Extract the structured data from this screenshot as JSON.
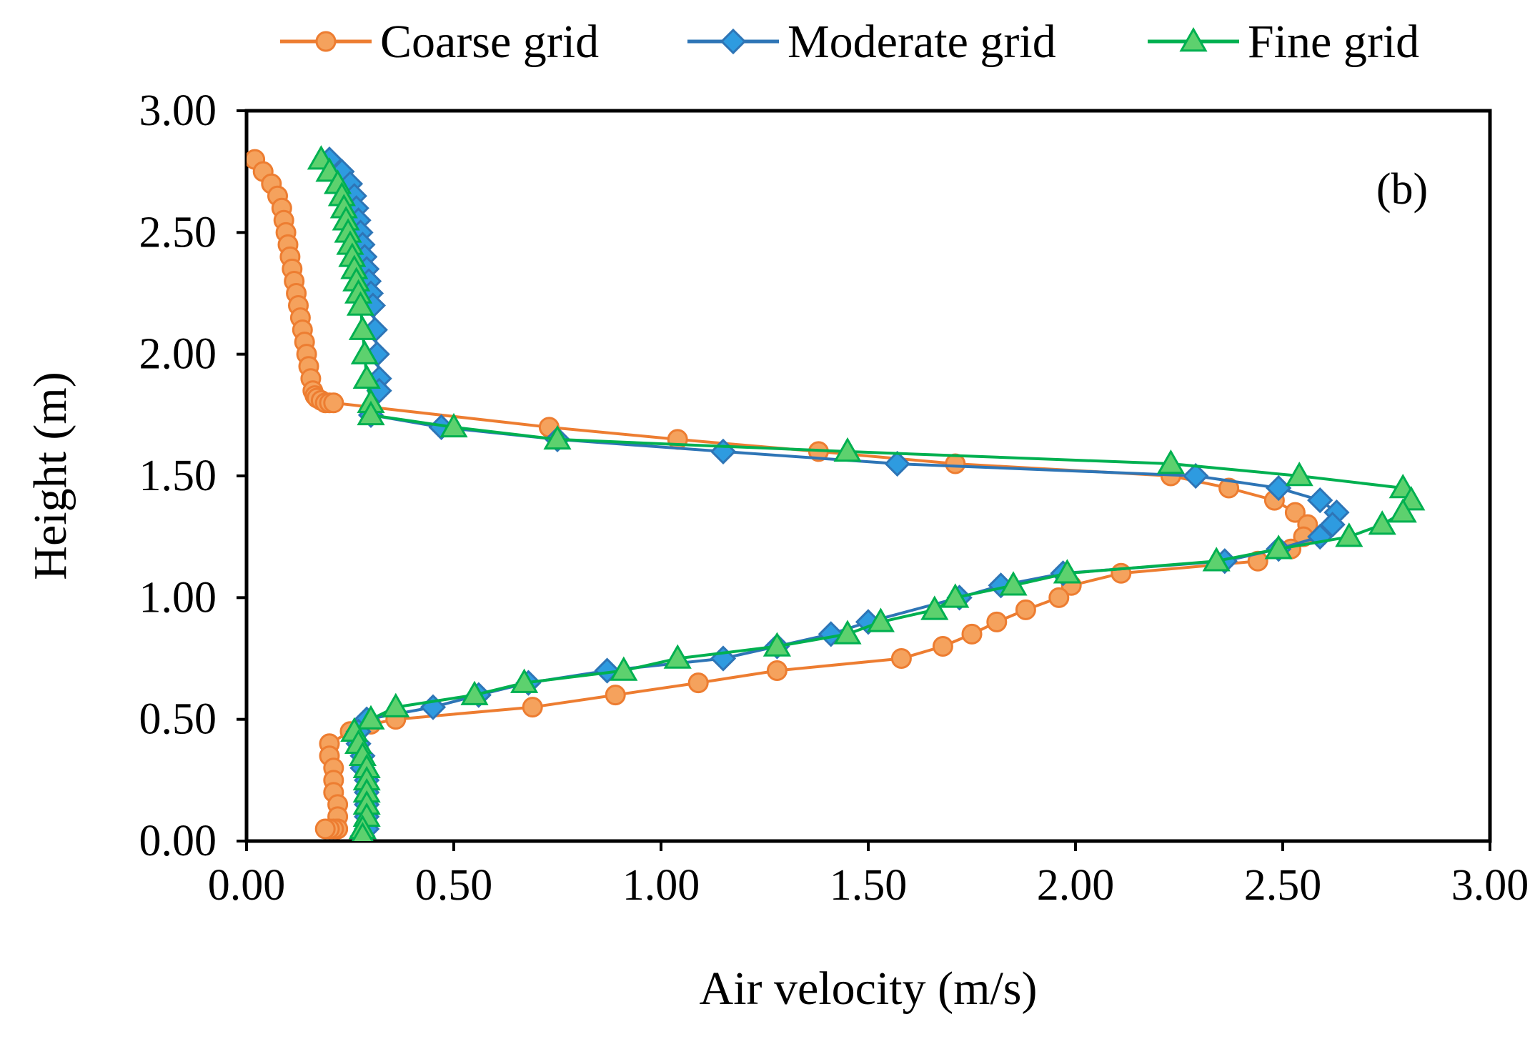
{
  "chart_data": {
    "type": "line",
    "title": "",
    "panel_label": "(b)",
    "xlabel": "Air velocity (m/s)",
    "ylabel": "Height (m)",
    "xlim": [
      0,
      3
    ],
    "ylim": [
      0,
      3
    ],
    "x_ticks": [
      "0.00",
      "0.50",
      "1.00",
      "1.50",
      "2.00",
      "2.50",
      "3.00"
    ],
    "y_ticks": [
      "0.00",
      "0.50",
      "1.00",
      "1.50",
      "2.00",
      "2.50",
      "3.00"
    ],
    "grid": false,
    "legend_position": "top",
    "series": [
      {
        "name": "Coarse grid",
        "color": "#ED7D31",
        "marker": "circle",
        "x": [
          0.02,
          0.04,
          0.06,
          0.075,
          0.085,
          0.09,
          0.095,
          0.1,
          0.105,
          0.11,
          0.115,
          0.12,
          0.125,
          0.13,
          0.135,
          0.14,
          0.145,
          0.15,
          0.155,
          0.16,
          0.165,
          0.17,
          0.18,
          0.19,
          0.2,
          0.21,
          0.73,
          1.04,
          1.38,
          1.71,
          2.23,
          2.37,
          2.48,
          2.53,
          2.56,
          2.55,
          2.52,
          2.44,
          2.11,
          1.99,
          1.96,
          1.88,
          1.81,
          1.75,
          1.68,
          1.58,
          1.28,
          1.09,
          0.89,
          0.69,
          0.36,
          0.3,
          0.25,
          0.2,
          0.2,
          0.21,
          0.21,
          0.21,
          0.22,
          0.22,
          0.22,
          0.22,
          0.21,
          0.2,
          0.19
        ],
        "y": [
          2.8,
          2.75,
          2.7,
          2.65,
          2.6,
          2.55,
          2.5,
          2.45,
          2.4,
          2.35,
          2.3,
          2.25,
          2.2,
          2.15,
          2.1,
          2.05,
          2.0,
          1.95,
          1.9,
          1.85,
          1.83,
          1.82,
          1.81,
          1.8,
          1.8,
          1.8,
          1.7,
          1.65,
          1.6,
          1.55,
          1.5,
          1.45,
          1.4,
          1.35,
          1.3,
          1.25,
          1.2,
          1.15,
          1.1,
          1.05,
          1.0,
          0.95,
          0.9,
          0.85,
          0.8,
          0.75,
          0.7,
          0.65,
          0.6,
          0.55,
          0.5,
          0.48,
          0.45,
          0.4,
          0.35,
          0.3,
          0.25,
          0.2,
          0.15,
          0.1,
          0.05,
          0.05,
          0.05,
          0.05,
          0.05
        ]
      },
      {
        "name": "Moderate grid",
        "color": "#2E75B6",
        "marker": "diamond",
        "x": [
          0.2,
          0.23,
          0.25,
          0.26,
          0.265,
          0.27,
          0.275,
          0.28,
          0.285,
          0.29,
          0.295,
          0.3,
          0.305,
          0.31,
          0.315,
          0.32,
          0.32,
          0.3,
          0.47,
          0.75,
          1.15,
          1.57,
          2.29,
          2.49,
          2.59,
          2.63,
          2.62,
          2.59,
          2.49,
          2.36,
          1.97,
          1.82,
          1.72,
          1.5,
          1.41,
          1.28,
          1.15,
          0.87,
          0.68,
          0.56,
          0.45,
          0.29,
          0.27,
          0.27,
          0.28,
          0.28,
          0.29,
          0.29,
          0.29,
          0.29,
          0.29,
          0.28
        ],
        "y": [
          2.8,
          2.75,
          2.7,
          2.65,
          2.6,
          2.55,
          2.5,
          2.45,
          2.4,
          2.35,
          2.3,
          2.25,
          2.2,
          2.1,
          2.0,
          1.9,
          1.85,
          1.75,
          1.7,
          1.65,
          1.6,
          1.55,
          1.5,
          1.45,
          1.4,
          1.35,
          1.3,
          1.25,
          1.2,
          1.15,
          1.1,
          1.05,
          1.0,
          0.9,
          0.85,
          0.8,
          0.75,
          0.7,
          0.65,
          0.6,
          0.55,
          0.5,
          0.45,
          0.4,
          0.35,
          0.3,
          0.25,
          0.2,
          0.15,
          0.1,
          0.05,
          0.02
        ]
      },
      {
        "name": "Fine grid",
        "color": "#00B050",
        "marker": "triangle",
        "x": [
          0.18,
          0.2,
          0.22,
          0.23,
          0.235,
          0.24,
          0.245,
          0.25,
          0.255,
          0.26,
          0.265,
          0.27,
          0.275,
          0.28,
          0.285,
          0.29,
          0.3,
          0.3,
          0.5,
          0.75,
          1.45,
          2.23,
          2.54,
          2.79,
          2.81,
          2.79,
          2.74,
          2.66,
          2.49,
          2.34,
          1.98,
          1.85,
          1.71,
          1.66,
          1.53,
          1.45,
          1.28,
          1.04,
          0.91,
          0.67,
          0.55,
          0.36,
          0.3,
          0.26,
          0.27,
          0.28,
          0.29,
          0.29,
          0.29,
          0.29,
          0.29,
          0.28,
          0.28
        ],
        "y": [
          2.8,
          2.75,
          2.7,
          2.65,
          2.6,
          2.55,
          2.5,
          2.45,
          2.4,
          2.35,
          2.3,
          2.25,
          2.2,
          2.1,
          2.0,
          1.9,
          1.8,
          1.75,
          1.7,
          1.65,
          1.6,
          1.55,
          1.5,
          1.45,
          1.4,
          1.35,
          1.3,
          1.25,
          1.2,
          1.15,
          1.1,
          1.05,
          1.0,
          0.95,
          0.9,
          0.85,
          0.8,
          0.75,
          0.7,
          0.65,
          0.6,
          0.55,
          0.5,
          0.45,
          0.4,
          0.35,
          0.3,
          0.25,
          0.2,
          0.15,
          0.1,
          0.05,
          0.02
        ]
      }
    ]
  }
}
